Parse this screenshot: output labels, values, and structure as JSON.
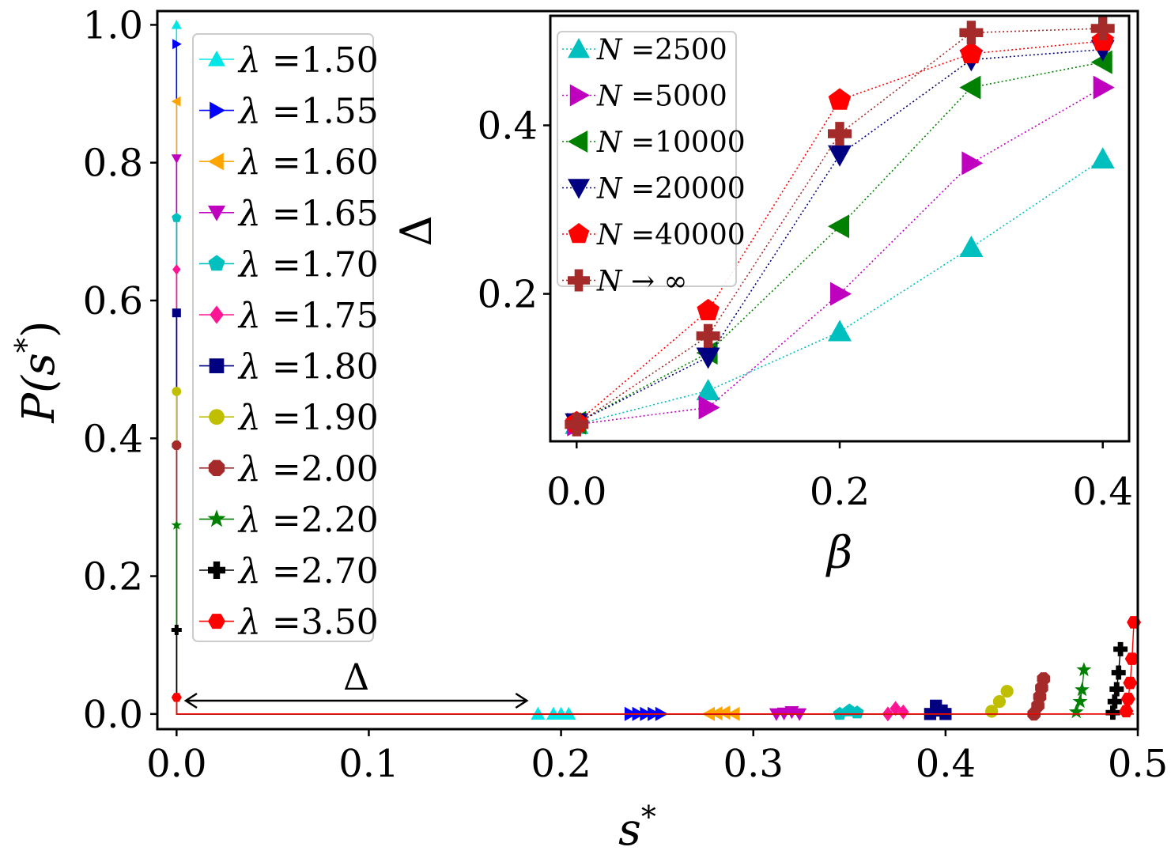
{
  "chart_data": [
    {
      "type": "scatter",
      "xlabel_base": "s",
      "xlabel_sup": "*",
      "ylabel_base": "P(s",
      "ylabel_sup": "*",
      "ylabel_close": ")",
      "xlim": [
        -0.01,
        0.5
      ],
      "ylim": [
        -0.022,
        1.02
      ],
      "xticks": [
        0.0,
        0.1,
        0.2,
        0.3,
        0.4,
        0.5
      ],
      "xtick_labels": [
        "0.0",
        "0.1",
        "0.2",
        "0.3",
        "0.4",
        "0.5"
      ],
      "yticks": [
        0.0,
        0.2,
        0.4,
        0.6,
        0.8,
        1.0
      ],
      "ytick_labels": [
        "0.0",
        "0.2",
        "0.4",
        "0.6",
        "0.8",
        "1.0"
      ],
      "legend_position": "upper-left",
      "annotation": {
        "text": "Δ",
        "from": 0.004,
        "to": 0.183,
        "y": 0.02
      },
      "series": [
        {
          "name": "λ =1.50",
          "color": "#00e6e6",
          "marker": "triangle-up",
          "p0": 1.0,
          "cluster_x": [
            0.188,
            0.196,
            0.2,
            0.204
          ],
          "cluster_y": [
            0.0,
            0.0,
            0.0,
            0.0
          ]
        },
        {
          "name": "λ =1.55",
          "color": "#0000ff",
          "marker": "triangle-right",
          "p0": 0.972,
          "cluster_x": [
            0.236,
            0.24,
            0.244,
            0.248,
            0.252
          ],
          "cluster_y": [
            0.0,
            0.0,
            0.0,
            0.0,
            0.0
          ]
        },
        {
          "name": "λ =1.60",
          "color": "#ffa500",
          "marker": "triangle-left",
          "p0": 0.889,
          "cluster_x": [
            0.277,
            0.281,
            0.285,
            0.29
          ],
          "cluster_y": [
            0.0,
            0.001,
            0.002,
            0.0
          ]
        },
        {
          "name": "λ =1.65",
          "color": "#bf00bf",
          "marker": "triangle-down",
          "p0": 0.806,
          "cluster_x": [
            0.312,
            0.316,
            0.32,
            0.324
          ],
          "cluster_y": [
            0.0,
            0.001,
            0.003,
            0.0
          ]
        },
        {
          "name": "λ =1.70",
          "color": "#00bfbf",
          "marker": "pentagon",
          "p0": 0.72,
          "cluster_x": [
            0.345,
            0.35,
            0.354
          ],
          "cluster_y": [
            0.0,
            0.005,
            0.002
          ]
        },
        {
          "name": "λ =1.75",
          "color": "#ff1493",
          "marker": "diamond",
          "p0": 0.645,
          "cluster_x": [
            0.37,
            0.374,
            0.378
          ],
          "cluster_y": [
            0.0,
            0.008,
            0.003
          ]
        },
        {
          "name": "λ =1.80",
          "color": "#000080",
          "marker": "square",
          "p0": 0.582,
          "cluster_x": [
            0.392,
            0.395,
            0.398,
            0.4
          ],
          "cluster_y": [
            0.0,
            0.012,
            0.005,
            0.0
          ]
        },
        {
          "name": "λ =1.90",
          "color": "#bfbf00",
          "marker": "circle",
          "p0": 0.468,
          "cluster_x": [
            0.424,
            0.428,
            0.432
          ],
          "cluster_y": [
            0.004,
            0.018,
            0.033
          ]
        },
        {
          "name": "λ =2.00",
          "color": "#a52a2a",
          "marker": "octagon",
          "p0": 0.39,
          "cluster_x": [
            0.446,
            0.448,
            0.449,
            0.45,
            0.451
          ],
          "cluster_y": [
            0.0,
            0.012,
            0.025,
            0.038,
            0.051
          ]
        },
        {
          "name": "λ =2.20",
          "color": "#008000",
          "marker": "star",
          "p0": 0.274,
          "cluster_x": [
            0.468,
            0.47,
            0.471,
            0.472
          ],
          "cluster_y": [
            0.003,
            0.018,
            0.035,
            0.064
          ]
        },
        {
          "name": "λ =2.70",
          "color": "#000000",
          "marker": "plus",
          "p0": 0.122,
          "cluster_x": [
            0.487,
            0.488,
            0.489,
            0.49,
            0.491
          ],
          "cluster_y": [
            0.002,
            0.018,
            0.036,
            0.06,
            0.094
          ]
        },
        {
          "name": "λ =3.50",
          "color": "#ff0000",
          "marker": "hexagon",
          "p0": 0.024,
          "cluster_x": [
            0.494,
            0.495,
            0.496,
            0.497,
            0.498
          ],
          "cluster_y": [
            0.004,
            0.022,
            0.045,
            0.08,
            0.133
          ]
        }
      ]
    },
    {
      "type": "line",
      "xlabel": "β",
      "ylabel": "Δ",
      "x": [
        0.0,
        0.1,
        0.2,
        0.3,
        0.4
      ],
      "xlim": [
        -0.02,
        0.42
      ],
      "ylim": [
        0.025,
        0.53
      ],
      "xticks": [
        0.0,
        0.2,
        0.4
      ],
      "xtick_labels": [
        "0.0",
        "0.2",
        "0.4"
      ],
      "yticks": [
        0.2,
        0.4
      ],
      "ytick_labels": [
        "0.2",
        "0.4"
      ],
      "legend_position": "upper-left",
      "series": [
        {
          "name_italic": "N",
          "name_rest": " =2500",
          "color": "#00bfbf",
          "marker": "triangle-up",
          "values": [
            0.045,
            0.085,
            0.155,
            0.255,
            0.36
          ]
        },
        {
          "name_italic": "N",
          "name_rest": " =5000",
          "color": "#bf00bf",
          "marker": "triangle-right",
          "values": [
            0.045,
            0.065,
            0.2,
            0.355,
            0.445
          ]
        },
        {
          "name_italic": "N",
          "name_rest": " =10000",
          "color": "#008000",
          "marker": "triangle-left",
          "values": [
            0.047,
            0.13,
            0.28,
            0.445,
            0.475
          ]
        },
        {
          "name_italic": "N",
          "name_rest": " =20000",
          "color": "#000080",
          "marker": "triangle-down",
          "values": [
            0.047,
            0.125,
            0.365,
            0.478,
            0.49
          ]
        },
        {
          "name_italic": "N",
          "name_rest": " =40000",
          "color": "#ff0000",
          "marker": "pentagon",
          "values": [
            0.047,
            0.18,
            0.43,
            0.485,
            0.5
          ]
        },
        {
          "name_italic": "N",
          "name_rest": " → ∞",
          "color": "#a52a2a",
          "marker": "plus",
          "values": [
            0.045,
            0.15,
            0.39,
            0.51,
            0.515
          ]
        }
      ]
    }
  ]
}
